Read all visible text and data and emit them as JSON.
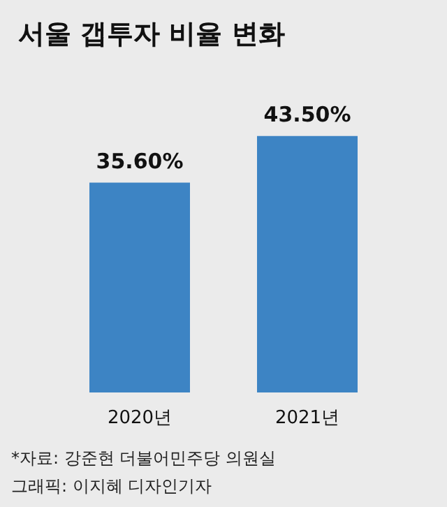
{
  "chart_data": {
    "type": "bar",
    "title": "서울 갭투자 비율 변화",
    "categories": [
      "2020년",
      "2021년"
    ],
    "values": [
      35.6,
      43.5
    ],
    "value_labels": [
      "35.60%",
      "43.50%"
    ],
    "color": "#3d84c4",
    "annotations": [
      "*자료: 강준현 더불어민주당 의원실",
      "그래픽: 이지혜 디자인기자"
    ]
  }
}
